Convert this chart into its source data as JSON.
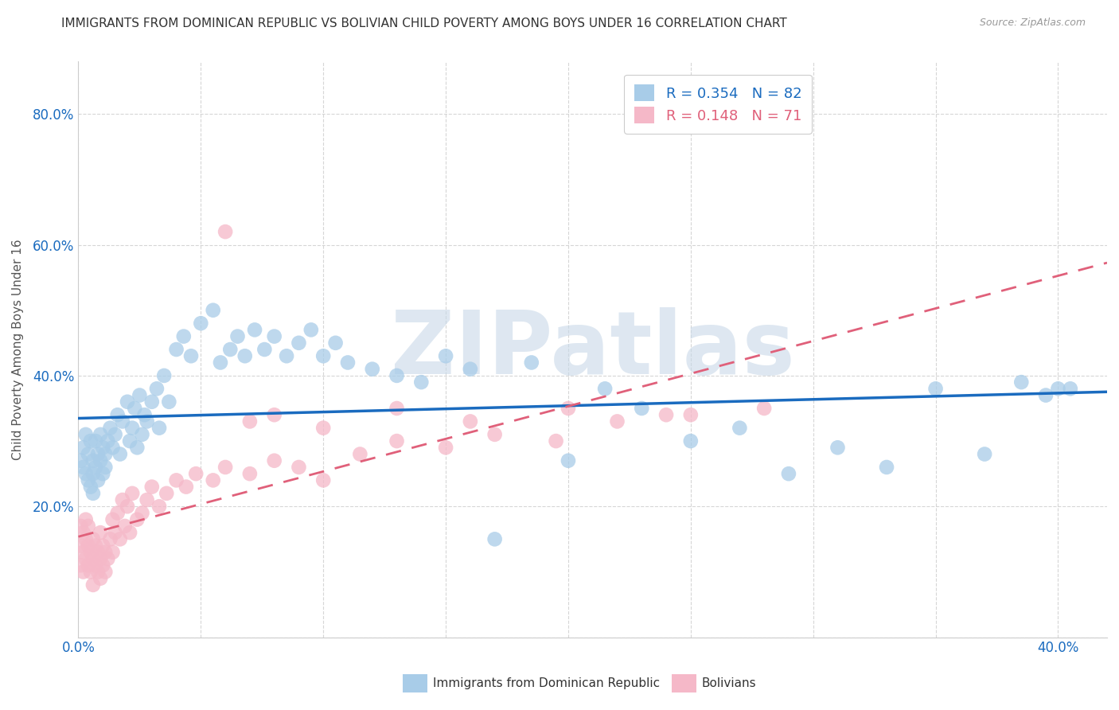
{
  "title": "IMMIGRANTS FROM DOMINICAN REPUBLIC VS BOLIVIAN CHILD POVERTY AMONG BOYS UNDER 16 CORRELATION CHART",
  "source": "Source: ZipAtlas.com",
  "ylabel": "Child Poverty Among Boys Under 16",
  "xlim": [
    0.0,
    0.42
  ],
  "ylim": [
    0.0,
    0.88
  ],
  "xticks": [
    0.0,
    0.05,
    0.1,
    0.15,
    0.2,
    0.25,
    0.3,
    0.35,
    0.4
  ],
  "xticklabels": [
    "0.0%",
    "",
    "",
    "",
    "",
    "",
    "",
    "",
    "40.0%"
  ],
  "yticks": [
    0.0,
    0.2,
    0.4,
    0.6,
    0.8
  ],
  "yticklabels": [
    "",
    "20.0%",
    "40.0%",
    "60.0%",
    "80.0%"
  ],
  "legend1_R": "0.354",
  "legend1_N": "82",
  "legend2_R": "0.148",
  "legend2_N": "71",
  "blue_color": "#a8cce8",
  "pink_color": "#f5b8c8",
  "blue_line_color": "#1a6bbf",
  "pink_line_color": "#e0607a",
  "watermark": "ZIPatlas",
  "watermark_color": "#c8d8e8",
  "grid_color": "#cccccc",
  "title_color": "#333333",
  "axis_label_color": "#555555",
  "tick_label_color_blue": "#1a6bbf",
  "blue_legend_label": "Immigrants from Dominican Republic",
  "pink_legend_label": "Bolivians",
  "blue_scatter_x": [
    0.001,
    0.002,
    0.002,
    0.003,
    0.003,
    0.004,
    0.004,
    0.005,
    0.005,
    0.006,
    0.006,
    0.006,
    0.007,
    0.007,
    0.008,
    0.008,
    0.009,
    0.009,
    0.01,
    0.01,
    0.011,
    0.011,
    0.012,
    0.013,
    0.014,
    0.015,
    0.016,
    0.017,
    0.018,
    0.02,
    0.021,
    0.022,
    0.023,
    0.024,
    0.025,
    0.026,
    0.027,
    0.028,
    0.03,
    0.032,
    0.033,
    0.035,
    0.037,
    0.04,
    0.043,
    0.046,
    0.05,
    0.055,
    0.058,
    0.062,
    0.065,
    0.068,
    0.072,
    0.076,
    0.08,
    0.085,
    0.09,
    0.095,
    0.1,
    0.105,
    0.11,
    0.12,
    0.13,
    0.14,
    0.15,
    0.16,
    0.17,
    0.185,
    0.2,
    0.215,
    0.23,
    0.25,
    0.27,
    0.29,
    0.31,
    0.33,
    0.35,
    0.37,
    0.385,
    0.395,
    0.4,
    0.405
  ],
  "blue_scatter_y": [
    0.27,
    0.26,
    0.29,
    0.25,
    0.31,
    0.24,
    0.28,
    0.23,
    0.3,
    0.25,
    0.27,
    0.22,
    0.26,
    0.3,
    0.24,
    0.28,
    0.27,
    0.31,
    0.25,
    0.29,
    0.28,
    0.26,
    0.3,
    0.32,
    0.29,
    0.31,
    0.34,
    0.28,
    0.33,
    0.36,
    0.3,
    0.32,
    0.35,
    0.29,
    0.37,
    0.31,
    0.34,
    0.33,
    0.36,
    0.38,
    0.32,
    0.4,
    0.36,
    0.44,
    0.46,
    0.43,
    0.48,
    0.5,
    0.42,
    0.44,
    0.46,
    0.43,
    0.47,
    0.44,
    0.46,
    0.43,
    0.45,
    0.47,
    0.43,
    0.45,
    0.42,
    0.41,
    0.4,
    0.39,
    0.43,
    0.41,
    0.15,
    0.42,
    0.27,
    0.38,
    0.35,
    0.3,
    0.32,
    0.25,
    0.29,
    0.26,
    0.38,
    0.28,
    0.39,
    0.37,
    0.38,
    0.38
  ],
  "pink_scatter_x": [
    0.001,
    0.001,
    0.001,
    0.002,
    0.002,
    0.002,
    0.003,
    0.003,
    0.003,
    0.004,
    0.004,
    0.004,
    0.005,
    0.005,
    0.006,
    0.006,
    0.006,
    0.007,
    0.007,
    0.008,
    0.008,
    0.009,
    0.009,
    0.009,
    0.01,
    0.01,
    0.011,
    0.011,
    0.012,
    0.013,
    0.014,
    0.014,
    0.015,
    0.016,
    0.017,
    0.018,
    0.019,
    0.02,
    0.021,
    0.022,
    0.024,
    0.026,
    0.028,
    0.03,
    0.033,
    0.036,
    0.04,
    0.044,
    0.048,
    0.055,
    0.06,
    0.07,
    0.08,
    0.09,
    0.1,
    0.115,
    0.13,
    0.15,
    0.17,
    0.195,
    0.22,
    0.25,
    0.28,
    0.06,
    0.07,
    0.08,
    0.1,
    0.13,
    0.16,
    0.2,
    0.24
  ],
  "pink_scatter_y": [
    0.14,
    0.11,
    0.17,
    0.13,
    0.16,
    0.1,
    0.12,
    0.15,
    0.18,
    0.11,
    0.14,
    0.17,
    0.1,
    0.13,
    0.12,
    0.15,
    0.08,
    0.11,
    0.14,
    0.1,
    0.13,
    0.09,
    0.12,
    0.16,
    0.11,
    0.14,
    0.1,
    0.13,
    0.12,
    0.15,
    0.13,
    0.18,
    0.16,
    0.19,
    0.15,
    0.21,
    0.17,
    0.2,
    0.16,
    0.22,
    0.18,
    0.19,
    0.21,
    0.23,
    0.2,
    0.22,
    0.24,
    0.23,
    0.25,
    0.24,
    0.26,
    0.25,
    0.27,
    0.26,
    0.24,
    0.28,
    0.3,
    0.29,
    0.31,
    0.3,
    0.33,
    0.34,
    0.35,
    0.62,
    0.33,
    0.34,
    0.32,
    0.35,
    0.33,
    0.35,
    0.34
  ]
}
